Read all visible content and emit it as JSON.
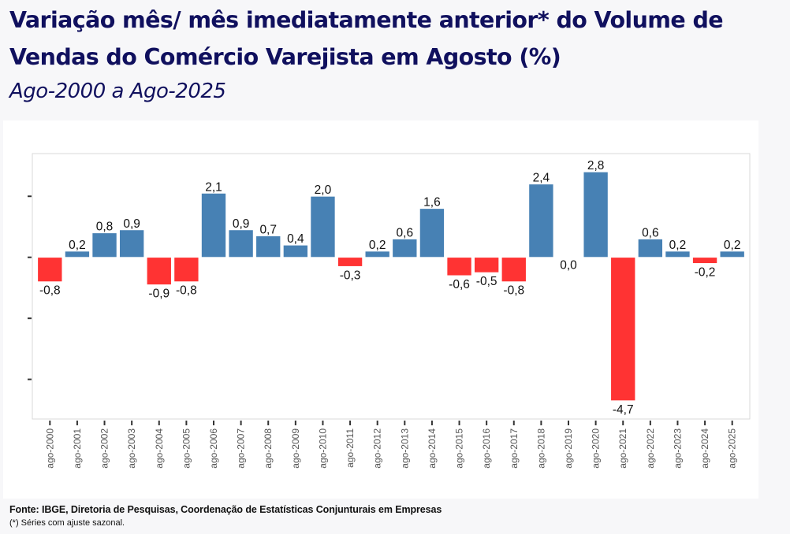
{
  "header": {
    "title_line1": "Variação mês/ mês imediatamente anterior* do Volume de",
    "title_line2": "Vendas do Comércio Varejista em Agosto (%)",
    "subtitle": "Ago-2000 a Ago-2025"
  },
  "footer": {
    "source": "Fonte: IBGE, Diretoria de Pesquisas, Coordenação de Estatísticas Conjunturais em Empresas",
    "note": "(*) Séries com ajuste sazonal."
  },
  "colors": {
    "positive": "#4781b4",
    "negative": "#ff3333",
    "title": "#10105e"
  },
  "chart_data": {
    "type": "bar",
    "title": "Variação mês/ mês imediatamente anterior* do Volume de Vendas do Comércio Varejista em Agosto (%)",
    "subtitle": "Ago-2000 a Ago-2025",
    "xlabel": "",
    "ylabel": "",
    "ylim": [
      -5.3,
      3.4
    ],
    "yticks": [
      2,
      0,
      -2,
      -4
    ],
    "ytick_labels_visible": false,
    "grid": false,
    "legend": "none",
    "categories": [
      "ago-2000",
      "ago-2001",
      "ago-2002",
      "ago-2003",
      "ago-2004",
      "ago-2005",
      "ago-2006",
      "ago-2007",
      "ago-2008",
      "ago-2009",
      "ago-2010",
      "ago-2011",
      "ago-2012",
      "ago-2013",
      "ago-2014",
      "ago-2015",
      "ago-2016",
      "ago-2017",
      "ago-2018",
      "ago-2019",
      "ago-2020",
      "ago-2021",
      "ago-2022",
      "ago-2023",
      "ago-2024",
      "ago-2025"
    ],
    "values": [
      -0.8,
      0.2,
      0.8,
      0.9,
      -0.9,
      -0.8,
      2.1,
      0.9,
      0.7,
      0.4,
      2.0,
      -0.3,
      0.2,
      0.6,
      1.6,
      -0.6,
      -0.5,
      -0.8,
      2.4,
      0.0,
      2.8,
      -4.7,
      0.6,
      0.2,
      -0.2,
      0.2
    ],
    "data_labels": [
      "-0,8",
      "0,2",
      "0,8",
      "0,9",
      "-0,9",
      "-0,8",
      "2,1",
      "0,9",
      "0,7",
      "0,4",
      "2,0",
      "-0,3",
      "0,2",
      "0,6",
      "1,6",
      "-0,6",
      "-0,5",
      "-0,8",
      "2,4",
      "0,0",
      "2,8",
      "-4,7",
      "0,6",
      "0,2",
      "-0,2",
      "0,2"
    ]
  }
}
